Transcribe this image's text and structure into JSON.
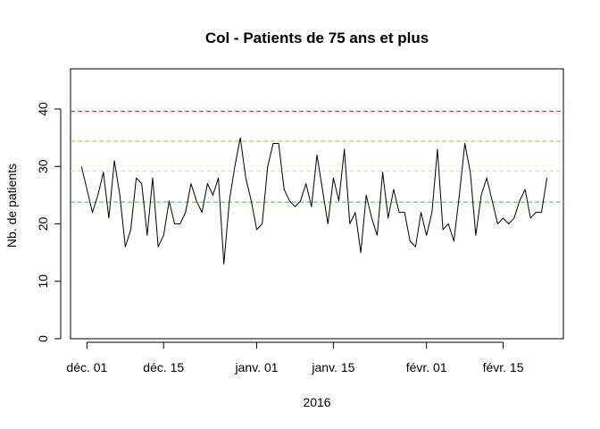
{
  "chart_data": {
    "type": "line",
    "title": "Col - Patients de 75 ans et plus",
    "xlabel": "2016",
    "ylabel": "Nb. de patients",
    "ylim": [
      0,
      47
    ],
    "yticks": [
      0,
      10,
      20,
      30,
      40
    ],
    "x_start": "2015-11-30",
    "x_end": "2016-02-23",
    "xlim": [
      "2015-11-28",
      "2016-02-26"
    ],
    "xticks": [
      {
        "date": "2015-12-01",
        "label": "déc. 01"
      },
      {
        "date": "2015-12-15",
        "label": "déc. 15"
      },
      {
        "date": "2016-01-01",
        "label": "janv. 01"
      },
      {
        "date": "2016-01-15",
        "label": "janv. 15"
      },
      {
        "date": "2016-02-01",
        "label": "févr. 01"
      },
      {
        "date": "2016-02-15",
        "label": "févr. 15"
      }
    ],
    "thresholds": [
      {
        "value": 23.8,
        "color": "#33cc33"
      },
      {
        "value": 29.2,
        "color": "#f5f000"
      },
      {
        "value": 34.4,
        "color": "#e6a817"
      },
      {
        "value": 39.6,
        "color": "#cc3333"
      }
    ],
    "series": [
      {
        "color": "#000000",
        "values": [
          30,
          26,
          22,
          25,
          29,
          21,
          31,
          25,
          16,
          19,
          28,
          27,
          18,
          28,
          16,
          18,
          24,
          20,
          20,
          22,
          27,
          24,
          22,
          27,
          25,
          28,
          13,
          24,
          30,
          35,
          28,
          24,
          19,
          20,
          30,
          34,
          34,
          26,
          24,
          23,
          24,
          27,
          23,
          32,
          26,
          20,
          28,
          24,
          33,
          20,
          22,
          15,
          25,
          21,
          18,
          29,
          21,
          26,
          22,
          22,
          17,
          16,
          22,
          18,
          22,
          33,
          19,
          20,
          17,
          25,
          34,
          29,
          18,
          25,
          28,
          24,
          20,
          21,
          20,
          21,
          24,
          26,
          21,
          22,
          22,
          28
        ]
      }
    ],
    "grid": false,
    "legend": "none"
  }
}
